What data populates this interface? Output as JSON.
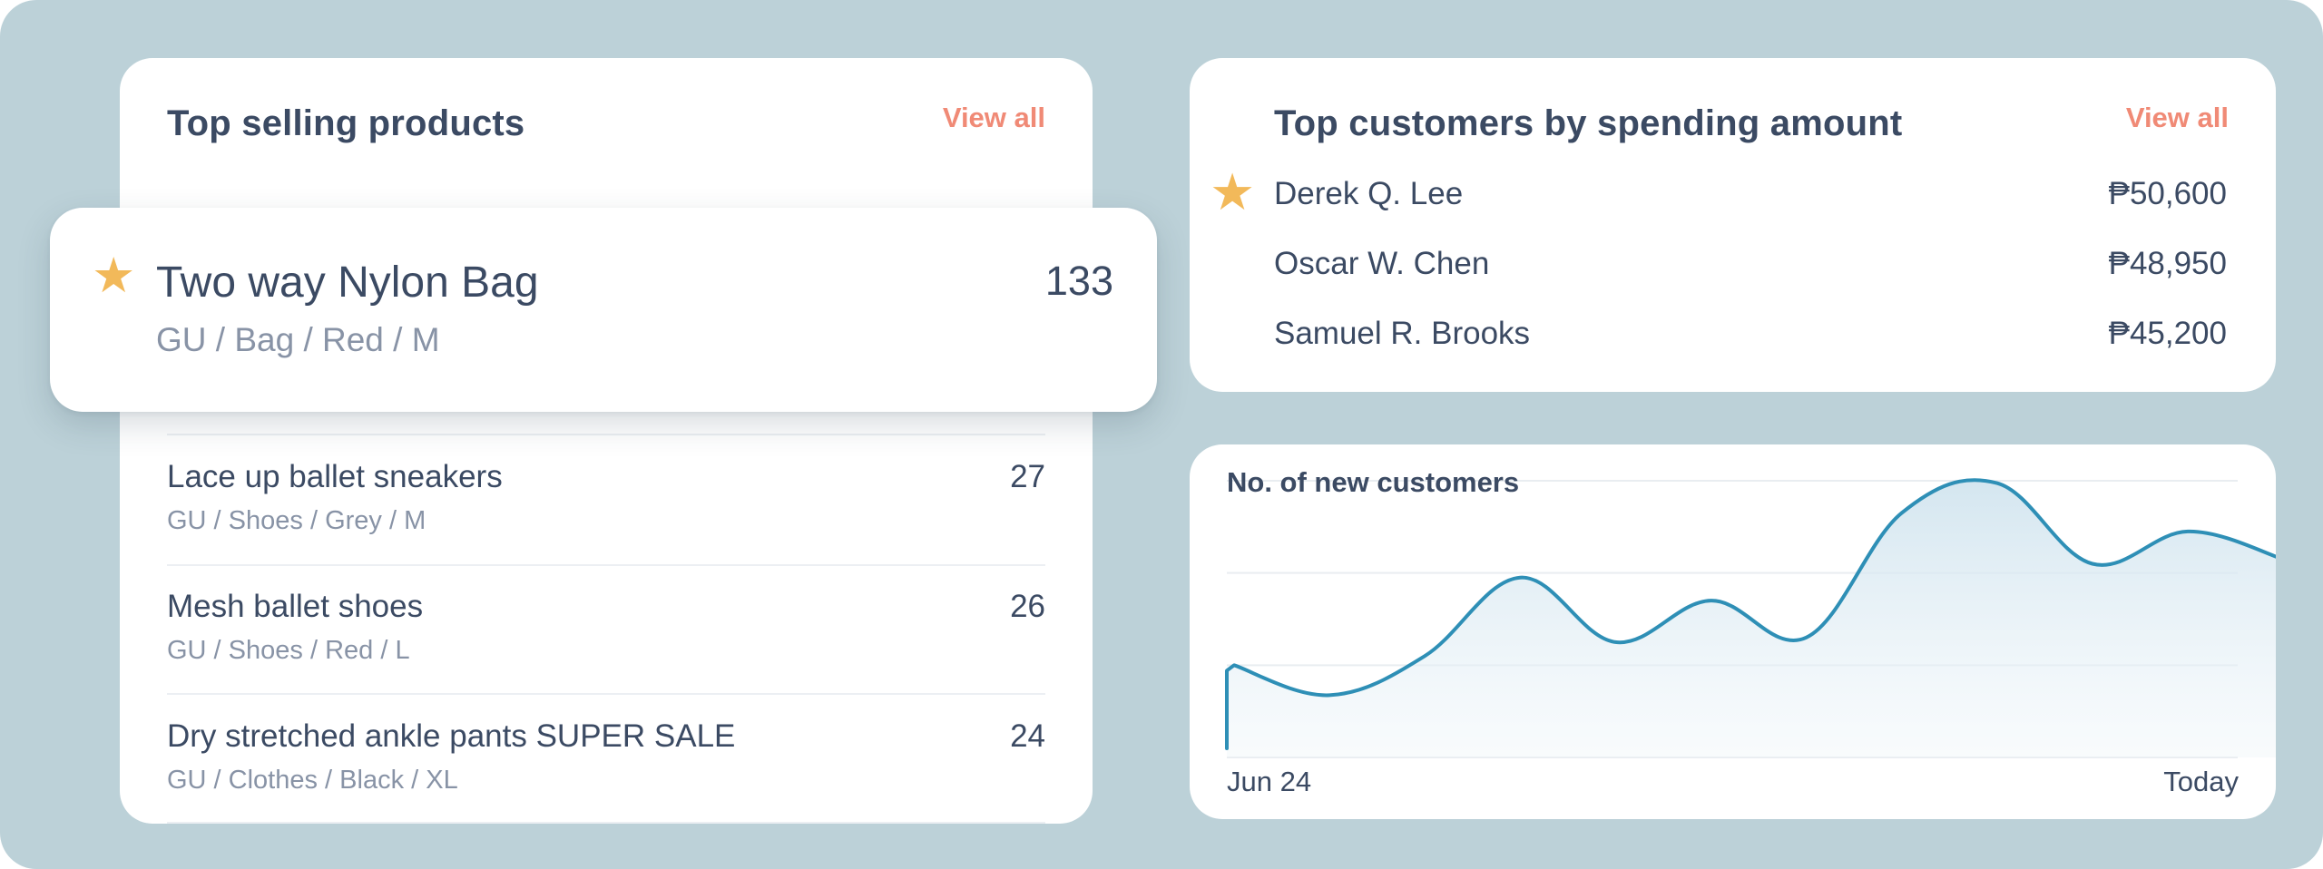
{
  "top_products": {
    "title": "Top selling products",
    "view_all": "View all",
    "featured": {
      "name": "Two way Nylon Bag",
      "variant": "GU / Bag / Red / M",
      "count": "133",
      "star": "★"
    },
    "items": [
      {
        "name": "Lace up ballet sneakers",
        "variant": "GU / Shoes / Grey / M",
        "count": "27"
      },
      {
        "name": "Mesh ballet shoes",
        "variant": "GU / Shoes / Red / L",
        "count": "26"
      },
      {
        "name": "Dry stretched ankle pants SUPER SALE",
        "variant": "GU / Clothes / Black / XL",
        "count": "24"
      }
    ]
  },
  "top_customers": {
    "title": "Top customers by spending amount",
    "view_all": "View all",
    "star": "★",
    "items": [
      {
        "name": "Derek Q. Lee",
        "amount": "₱50,600"
      },
      {
        "name": "Oscar W. Chen",
        "amount": "₱48,950"
      },
      {
        "name": "Samuel R. Brooks",
        "amount": "₱45,200"
      }
    ]
  },
  "colors": {
    "accent": "#f08a76",
    "star": "#f2b95a",
    "line": "#2e8fb6",
    "text": "#3b4a63",
    "background": "#bcd1d8"
  },
  "chart_data": {
    "type": "area",
    "title": "No. of new customers",
    "x_labels": [
      "Jun 24",
      "Today"
    ],
    "values": [
      2.0,
      1.35,
      2.2,
      3.9,
      2.5,
      3.4,
      2.6,
      5.3,
      5.95,
      4.2,
      4.9,
      4.3
    ],
    "ylim": [
      0,
      6
    ],
    "grid": true,
    "legend": "none"
  }
}
